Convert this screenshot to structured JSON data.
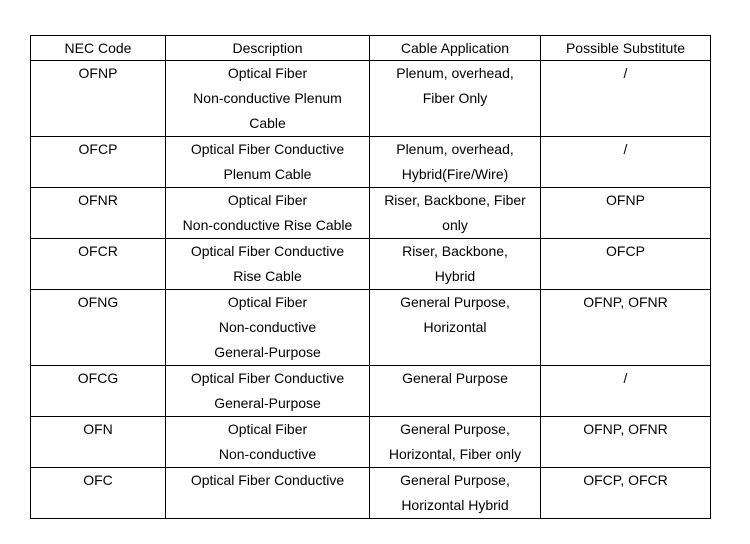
{
  "table": {
    "header": [
      "NEC Code",
      "Description",
      "Cable Application",
      "Possible Substitute"
    ],
    "rows": [
      [
        [
          "OFNP"
        ],
        [
          "Optical Fiber",
          "Non-conductive Plenum",
          "Cable"
        ],
        [
          "Plenum, overhead,",
          "Fiber Only"
        ],
        [
          "/"
        ]
      ],
      [
        [
          "OFCP"
        ],
        [
          "Optical Fiber Conductive",
          "Plenum Cable"
        ],
        [
          "Plenum, overhead,",
          "Hybrid(Fire/Wire)"
        ],
        [
          "/"
        ]
      ],
      [
        [
          "OFNR"
        ],
        [
          "Optical Fiber",
          "Non-conductive Rise Cable"
        ],
        [
          "Riser, Backbone, Fiber",
          "only"
        ],
        [
          "OFNP"
        ]
      ],
      [
        [
          "OFCR"
        ],
        [
          "Optical Fiber Conductive",
          "Rise Cable"
        ],
        [
          "Riser, Backbone,",
          "Hybrid"
        ],
        [
          "OFCP"
        ]
      ],
      [
        [
          "OFNG"
        ],
        [
          "Optical Fiber",
          "Non-conductive",
          "General-Purpose"
        ],
        [
          "General Purpose,",
          "Horizontal"
        ],
        [
          "OFNP, OFNR"
        ]
      ],
      [
        [
          "OFCG"
        ],
        [
          "Optical Fiber Conductive",
          "General-Purpose"
        ],
        [
          "General Purpose"
        ],
        [
          "/"
        ]
      ],
      [
        [
          "OFN"
        ],
        [
          "Optical Fiber",
          "Non-conductive"
        ],
        [
          "General Purpose,",
          "Horizontal, Fiber only"
        ],
        [
          "OFNP, OFNR"
        ]
      ],
      [
        [
          "OFC"
        ],
        [
          "Optical Fiber Conductive"
        ],
        [
          "General Purpose,",
          "Horizontal Hybrid"
        ],
        [
          "OFCP, OFCR"
        ]
      ]
    ]
  }
}
